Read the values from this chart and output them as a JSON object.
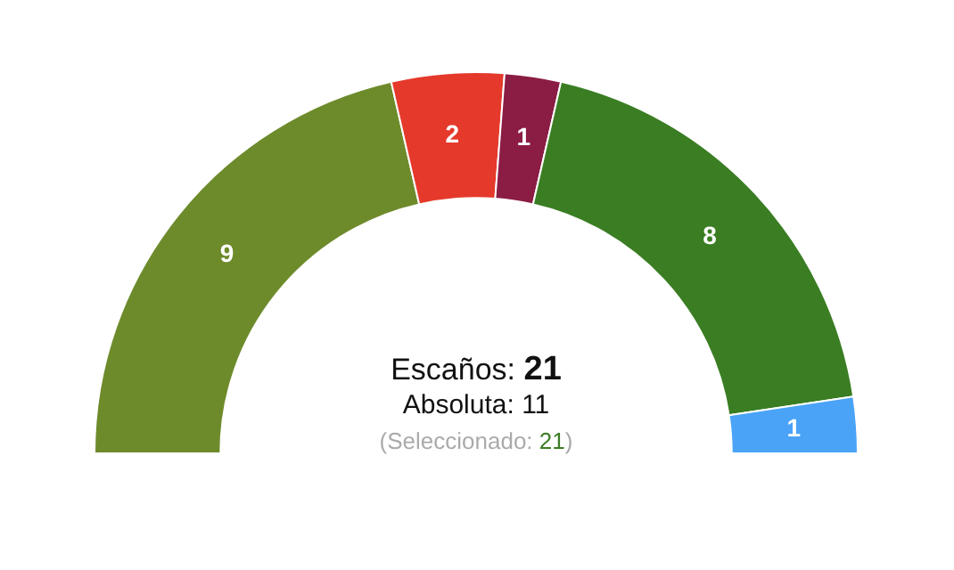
{
  "chart_data": {
    "type": "donut",
    "categories": [
      null,
      null,
      null,
      null,
      null
    ],
    "values": [
      9,
      2,
      1,
      8,
      1
    ],
    "colors": [
      "#6e8b2c",
      "#e5392b",
      "#8b1c44",
      "#3a7d23",
      "#4aa3f7"
    ],
    "data_labels": true,
    "legend": false,
    "annotations": [
      "Escaños: 21",
      "Absoluta: 11",
      "(Seleccionado: 21)"
    ]
  }
}
